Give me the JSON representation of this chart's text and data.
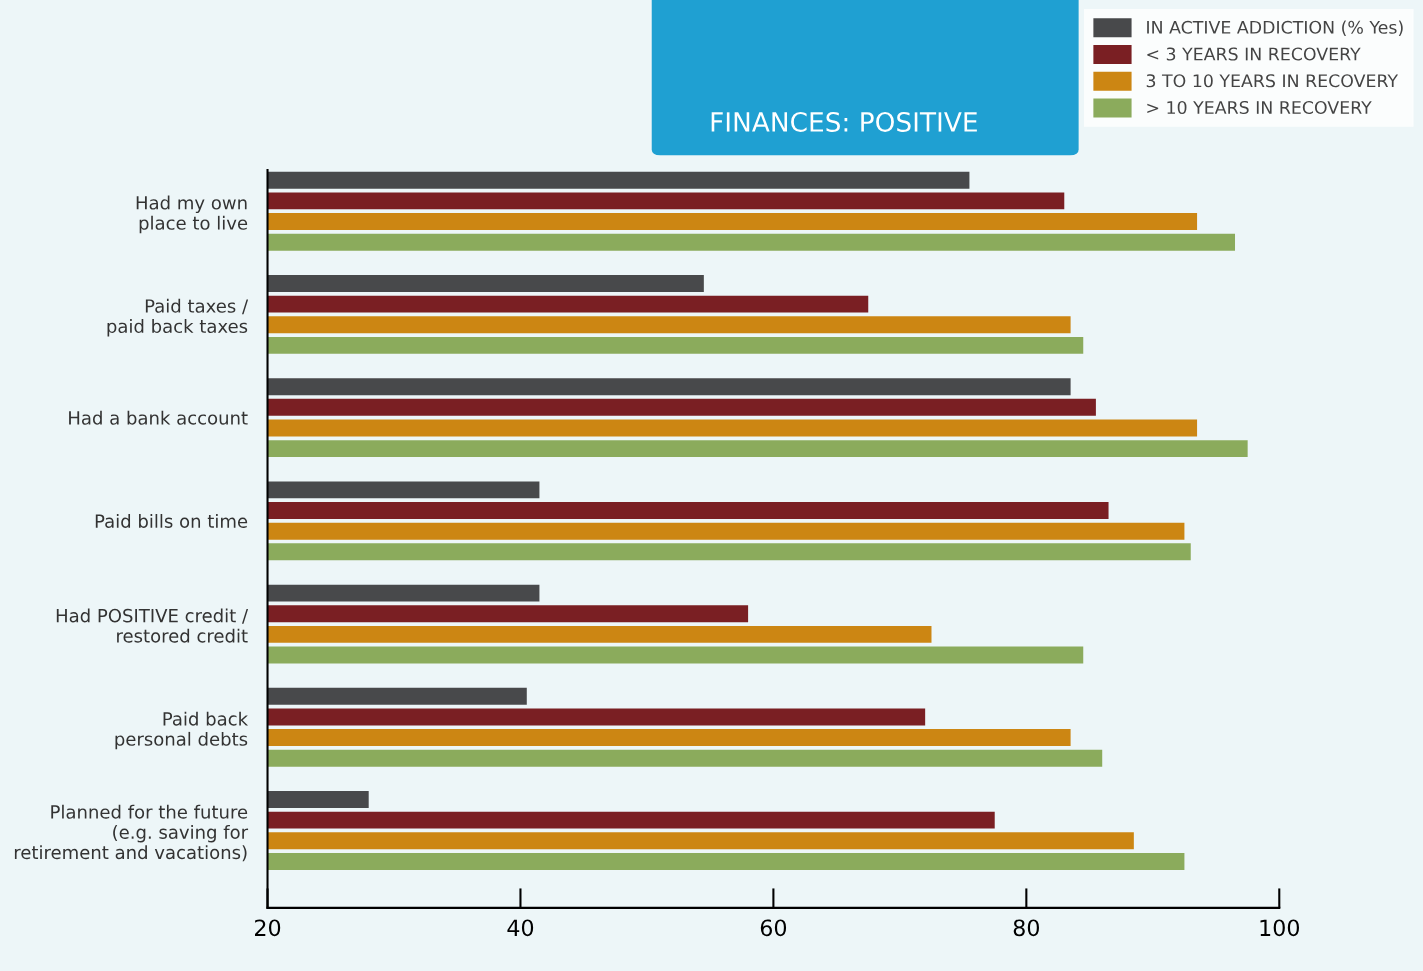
{
  "chart_data": {
    "type": "bar",
    "orientation": "horizontal",
    "title": "FINANCES: POSITIVE",
    "categories": [
      "Had my own\nplace to live",
      "Paid taxes /\npaid back taxes",
      "Had a bank account",
      "Paid bills on time",
      "Had POSITIVE credit /\nrestored credit",
      "Paid back\npersonal debts",
      "Planned for the future\n(e.g. saving for\nretirement and vacations)"
    ],
    "series": [
      {
        "name": "IN ACTIVE ADDICTION (% Yes)",
        "color": "#48494b",
        "values": [
          75.5,
          54.5,
          83.5,
          41.5,
          41.5,
          40.5,
          28
        ]
      },
      {
        "name": "< 3 YEARS IN RECOVERY",
        "color": "#7a1f23",
        "values": [
          83,
          67.5,
          85.5,
          86.5,
          58,
          72,
          77.5
        ]
      },
      {
        "name": "3 TO 10 YEARS IN RECOVERY",
        "color": "#cc8613",
        "values": [
          93.5,
          83.5,
          93.5,
          92.5,
          72.5,
          83.5,
          88.5
        ]
      },
      {
        "name": "> 10 YEARS IN RECOVERY",
        "color": "#8bab5c",
        "values": [
          96.5,
          84.5,
          97.5,
          93,
          84.5,
          86,
          92.5
        ]
      }
    ],
    "xlim": [
      20,
      100
    ],
    "xticks": [
      20,
      40,
      60,
      80,
      100
    ],
    "grid": false,
    "legend": "top right"
  }
}
